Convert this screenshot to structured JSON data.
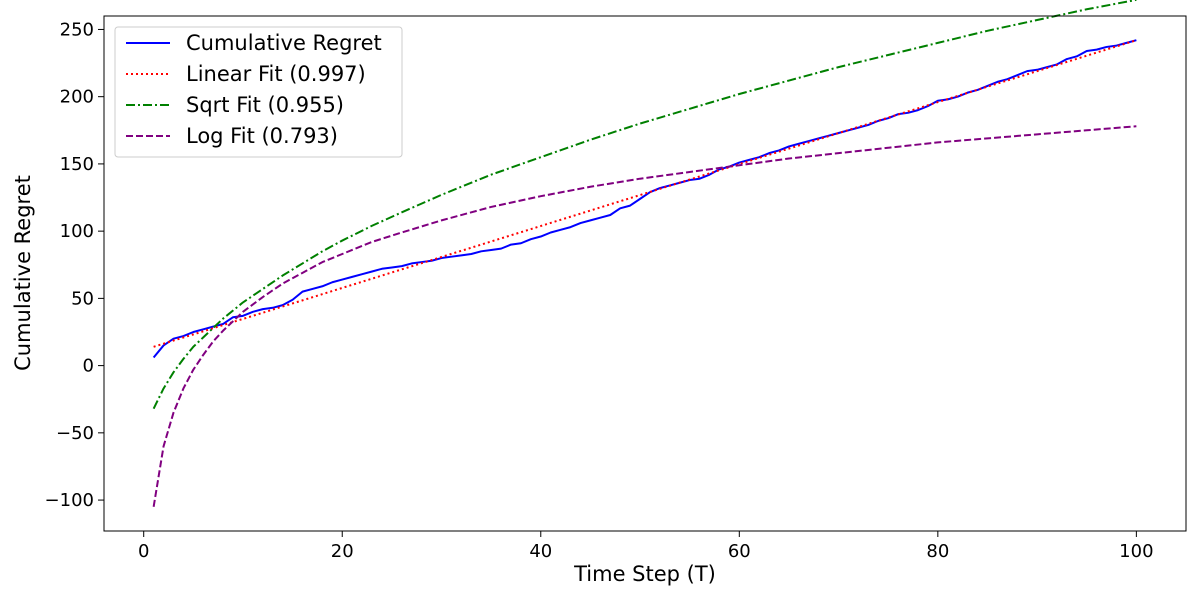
{
  "chart_data": {
    "type": "line",
    "title": "",
    "xlabel": "Time Step (T)",
    "ylabel": "Cumulative Regret",
    "xlim": [
      -4,
      105
    ],
    "ylim": [
      -123,
      260
    ],
    "xticks": [
      0,
      20,
      40,
      60,
      80,
      100
    ],
    "yticks": [
      -100,
      -50,
      0,
      50,
      100,
      150,
      200,
      250
    ],
    "grid": false,
    "legend_position": "top-left",
    "series": [
      {
        "name": "Cumulative Regret",
        "color": "#0000ff",
        "style": "solid",
        "x": [
          1,
          2,
          3,
          4,
          5,
          6,
          7,
          8,
          9,
          10,
          11,
          12,
          13,
          14,
          15,
          16,
          17,
          18,
          19,
          20,
          21,
          22,
          23,
          24,
          25,
          26,
          27,
          28,
          29,
          30,
          31,
          32,
          33,
          34,
          35,
          36,
          37,
          38,
          39,
          40,
          41,
          42,
          43,
          44,
          45,
          46,
          47,
          48,
          49,
          50,
          51,
          52,
          53,
          54,
          55,
          56,
          57,
          58,
          59,
          60,
          61,
          62,
          63,
          64,
          65,
          66,
          67,
          68,
          69,
          70,
          71,
          72,
          73,
          74,
          75,
          76,
          77,
          78,
          79,
          80,
          81,
          82,
          83,
          84,
          85,
          86,
          87,
          88,
          89,
          90,
          91,
          92,
          93,
          94,
          95,
          96,
          97,
          98,
          99,
          100
        ],
        "y": [
          6,
          15,
          20,
          22,
          25,
          27,
          29,
          31,
          36,
          37,
          40,
          42,
          43,
          45,
          49,
          55,
          57,
          59,
          62,
          64,
          66,
          68,
          70,
          72,
          73,
          74,
          76,
          77,
          78,
          80,
          81,
          82,
          83,
          85,
          86,
          87,
          90,
          91,
          94,
          96,
          99,
          101,
          103,
          106,
          108,
          110,
          112,
          117,
          119,
          124,
          129,
          132,
          134,
          136,
          138,
          139,
          142,
          146,
          148,
          151,
          153,
          155,
          158,
          160,
          163,
          165,
          167,
          169,
          171,
          173,
          175,
          177,
          179,
          182,
          184,
          187,
          188,
          190,
          193,
          197,
          198,
          200,
          203,
          205,
          208,
          211,
          213,
          216,
          219,
          220,
          222,
          224,
          228,
          230,
          234,
          235,
          237,
          238,
          240,
          242
        ]
      },
      {
        "name": "Linear Fit (0.997)",
        "color": "#ff0000",
        "style": "dotted",
        "x": [
          1,
          100
        ],
        "y": [
          14,
          242
        ]
      },
      {
        "name": "Sqrt Fit (0.955)",
        "color": "#008000",
        "style": "dashdot",
        "x": [
          1,
          2,
          3,
          4,
          5,
          6,
          7,
          8,
          9,
          10,
          12,
          14,
          16,
          18,
          20,
          23,
          26,
          30,
          35,
          40,
          45,
          50,
          55,
          60,
          65,
          70,
          75,
          80,
          85,
          90,
          95,
          100
        ],
        "y": [
          -32,
          -17,
          -5,
          5,
          14,
          21,
          28,
          35,
          41,
          47,
          57,
          67,
          76,
          85,
          93,
          104,
          114,
          127,
          142,
          155,
          168,
          180,
          191,
          202,
          212,
          222,
          231,
          240,
          249,
          257,
          265,
          272
        ]
      },
      {
        "name": "Log Fit (0.793)",
        "color": "#800080",
        "style": "dashed",
        "x": [
          1,
          2,
          3,
          4,
          5,
          6,
          7,
          8,
          9,
          10,
          12,
          14,
          16,
          18,
          20,
          23,
          26,
          30,
          35,
          40,
          45,
          50,
          55,
          60,
          65,
          70,
          75,
          80,
          85,
          90,
          95,
          100
        ],
        "y": [
          -105,
          -60,
          -35,
          -17,
          -3,
          8,
          18,
          26,
          33,
          40,
          51,
          61,
          69,
          77,
          83,
          92,
          99,
          108,
          118,
          126,
          133,
          139,
          144,
          149,
          154,
          158,
          162,
          166,
          169,
          172,
          175,
          178
        ]
      }
    ]
  }
}
